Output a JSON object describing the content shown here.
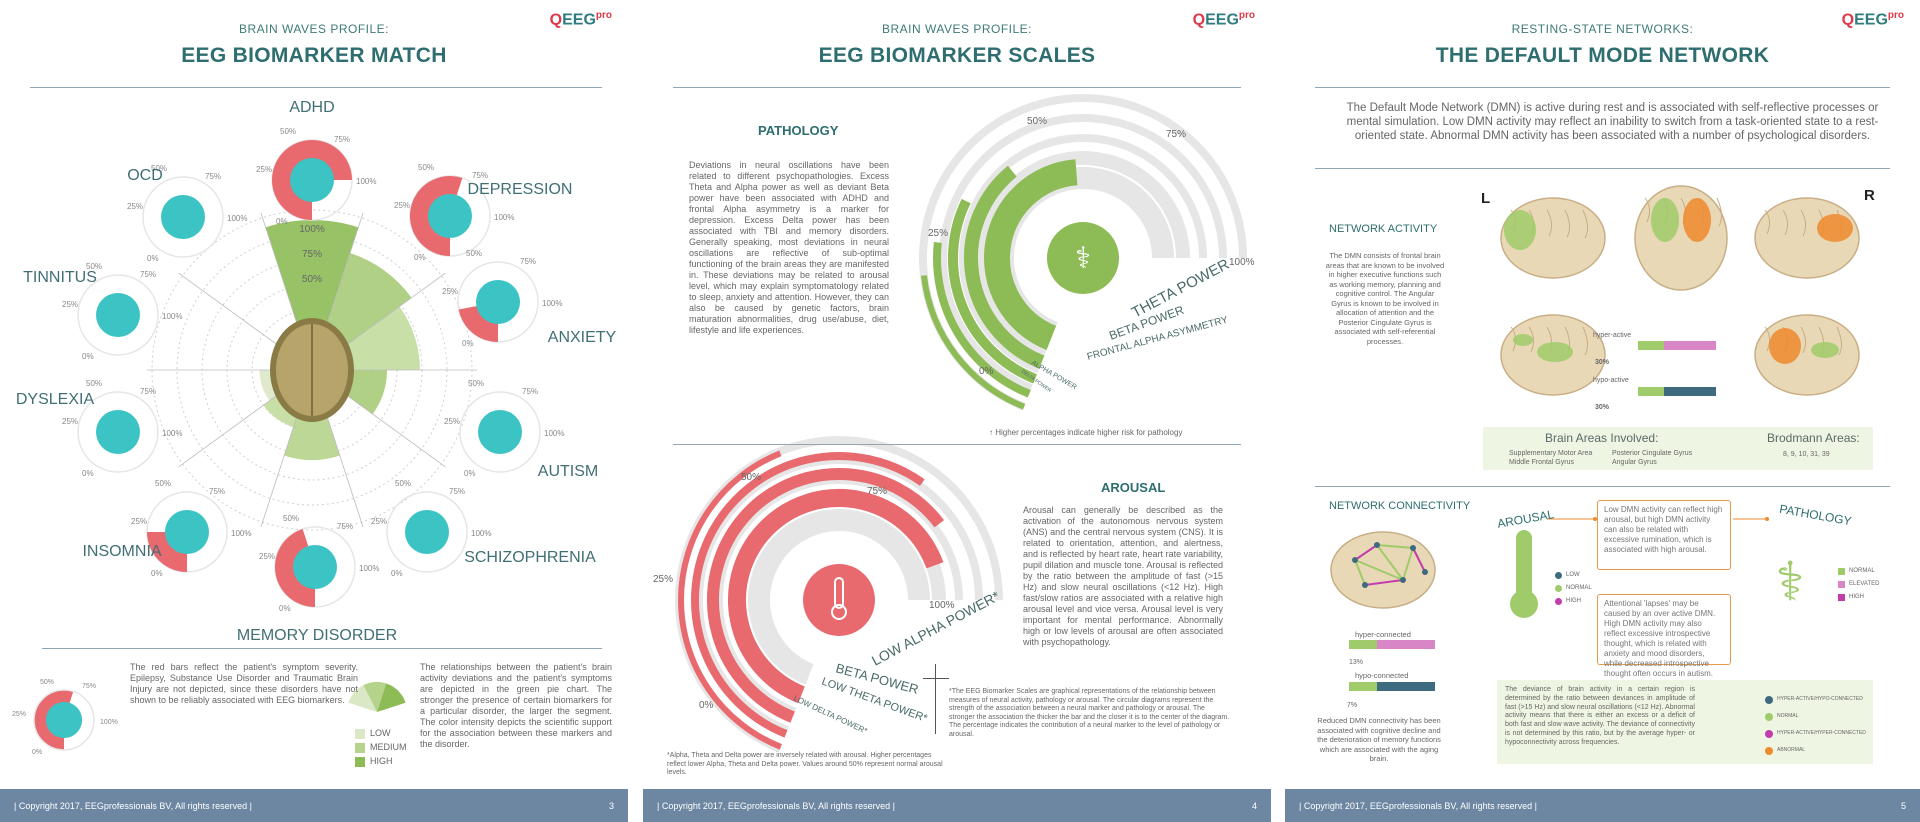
{
  "colors": {
    "teal": "#3cc3c4",
    "red": "#e86a6f",
    "green": "#8dbb55",
    "grey": "#e6e6e6",
    "footer": "#6d87a3",
    "orange": "#ee8a2e",
    "title": "#2e6e70"
  },
  "logo": {
    "q": "Q",
    "eeg": "EEG",
    "pro": "pro"
  },
  "footer": {
    "copyright": "| Copyright 2017, EEGprofessionals BV, All rights reserved |",
    "page3": "3",
    "page4": "4",
    "page5": "5"
  },
  "page1": {
    "kicker": "BRAIN WAVES PROFILE:",
    "title": "EEG BIOMARKER MATCH",
    "disorders": [
      "ADHD",
      "DEPRESSION",
      "ANXIETY",
      "AUTISM",
      "SCHIZOPHRENIA",
      "MEMORY DISORDER",
      "INSOMNIA",
      "DYSLEXIA",
      "TINNITUS",
      "OCD"
    ],
    "severity": [
      0.75,
      0.55,
      0.22,
      0,
      0,
      0.45,
      0.25,
      0,
      0,
      0
    ],
    "pie": {
      "ticks": [
        "100%",
        "75%",
        "50%"
      ],
      "levels": [
        1.0,
        0.82,
        0.72,
        0.5,
        0.3,
        0.6,
        0.4,
        0.35,
        0.25,
        0.3
      ]
    },
    "pct_labels": {
      "p0": "0%",
      "p25": "25%",
      "p50": "50%",
      "p75": "75%",
      "p100": "100%"
    },
    "note_left": "The red bars reflect the patient's symptom severity. Epilepsy, Substance Use Disorder and Traumatic Brain Injury are not depicted, since these disorders have not shown to be reliably associated with EEG biomarkers.",
    "note_right": "The relationships between the patient's brain activity deviations and the patient's symptoms are depicted in the green pie chart. The stronger the presence of certain biomarkers for a particular disorder, the larger the segment. The color intensity depicts the scientific support for the association between these markers and the disorder.",
    "legend": [
      "LOW",
      "MEDIUM",
      "HIGH"
    ]
  },
  "page2": {
    "kicker": "BRAIN WAVES PROFILE:",
    "title": "EEG BIOMARKER SCALES",
    "pathology_h": "PATHOLOGY",
    "pathology_text": "Deviations in neural oscillations have been related to different psychopathologies. Excess Theta and Alpha power as well as deviant Beta power have been associated with ADHD and frontal Alpha asymmetry is a marker for depression. Excess Delta power has been associated with TBI and memory disorders. Generally speaking, most deviations in neural oscillations are reflective of sub-optimal functioning of the brain areas they are manifested in. These deviations may be related to arousal level, which may explain symptomatology related to sleep, anxiety and attention. However, they can also be caused by genetic factors, brain maturation abnormalities, drug use/abuse, diet, lifestyle and life experiences.",
    "pathology_values": [
      0.62,
      0.48,
      0.38,
      0.3,
      0.25
    ],
    "pathology_labels": [
      "THETA POWER",
      "BETA POWER",
      "FRONTAL ALPHA ASYMMETRY",
      "ALPHA POWER",
      "DELTA POWER"
    ],
    "scale": {
      "p0": "0%",
      "p25": "25%",
      "p50": "50%",
      "p75": "75%",
      "p100": "100%"
    },
    "risk_note": "↑ Higher percentages indicate higher risk for pathology",
    "arousal_h": "AROUSAL",
    "arousal_text": "Arousal can generally be described as the activation of the autonomous nervous system (ANS) and the central nervous system (CNS). It is related to orientation, attention, and alertness, and is reflected by heart rate, heart rate variability, pupil dilation and muscle tone. Arousal is reflected by the ratio between the amplitude of fast (>15 Hz) and slow neural oscillations (<12 Hz). High fast/slow ratios are associated with a relative high arousal level and vice versa. Arousal level is very important for mental performance. Abnormally high or low levels of arousal are often associated with psychopathology.",
    "arousal_values": [
      0.92,
      0.85,
      0.78,
      0.55
    ],
    "arousal_labels": [
      "LOW ALPHA POWER*",
      "BETA POWER",
      "LOW THETA POWER*",
      "LOW DELTA POWER*"
    ],
    "footnote_left": "*Alpha, Theta and Delta power are inversely related with arousal. Higher percentages reflect lower Alpha, Theta and Delta power. Values around 50% represent normal arousal levels.",
    "footnote_right": "*The EEG Biomarker Scales are graphical representations of the relationship between measures of neural activity, pathology or arousal. The circular diagrams represent the strength of the association between a neural marker and pathology or arousal. The stronger the association the thicker the bar and the closer it is to the center of the diagram. The percentage indicates the contribution of a neural marker to the level of pathology or arousal."
  },
  "page3": {
    "kicker": "RESTING-STATE NETWORKS:",
    "title": "THE DEFAULT MODE NETWORK",
    "intro": "The Default Mode Network (DMN) is active during rest and is associated with self-reflective processes or mental simulation. Low DMN activity may reflect an inability to switch from a task-oriented state to a rest-oriented state. Abnormal DMN activity has been associated with a number of psychological disorders.",
    "activity_h": "NETWORK ACTIVITY",
    "activity_text": "The DMN consists of frontal brain areas that are known to be involved in higher executive functions such as working memory, planning and cognitive control. The Angular Gyrus is known to be involved in allocation of attention and the Posterior Cingulate Gyrus is associated with self-referential processes.",
    "left": "L",
    "right": "R",
    "hyper_active": "hyper-active",
    "hypo_active": "hypo-active",
    "hyper_pct": "30%",
    "hypo_pct": "30%",
    "areas_h": "Brain Areas Involved:",
    "areas": [
      "Supplementary Motor Area",
      "Posterior Cingulate Gyrus",
      "Middle Frontal Gyrus",
      "Angular Gyrus"
    ],
    "brodmann_h": "Brodmann Areas:",
    "brodmann": "8, 9, 10, 31, 39",
    "connectivity_h": "NETWORK CONNECTIVITY",
    "hyper_connected": "hyper-connected",
    "hypo_connected": "hypo-connected",
    "hyper_conn_pct": "13%",
    "hypo_conn_pct": "7%",
    "conn_note": "Reduced DMN connectivity has been associated with cognitive decline and the deterioration of memory functions which are associated with the aging brain.",
    "arousal_label": "AROUSAL",
    "pathology_label": "PATHOLOGY",
    "arousal_legend": [
      "LOW",
      "NORMAL",
      "HIGH"
    ],
    "pathology_legend": [
      "NORMAL",
      "ELEVATED",
      "HIGH"
    ],
    "box1": "Low DMN activity can reflect high arousal, but high DMN activity can also be related with excessive rumination, which is associated with high arousal.",
    "box2": "Attentional 'lapses' may be caused by an over active DMN. High DMN activity may also reflect excessive introspective thought, which is related with anxiety and mood disorders, while decreased introspective thought often occurs in autism.",
    "deviance": "The deviance of brain activity in a certain region is determined by the ratio between deviances in amplitude of fast (>15 Hz) and slow neural oscillations (<12 Hz). Abnormal activity means that there is either an excess or a deficit of both fast and slow wave activity. The deviance of connectivity is not determined by this ratio, but by the average hyper- or hypoconnectivity across frequencies.",
    "legend4": [
      "HYPER-ACTIVE/HYPO-CONNECTED",
      "NORMAL",
      "HYPER-ACTIVE/HYPER-CONNECTED",
      "ABNORMAL"
    ]
  }
}
